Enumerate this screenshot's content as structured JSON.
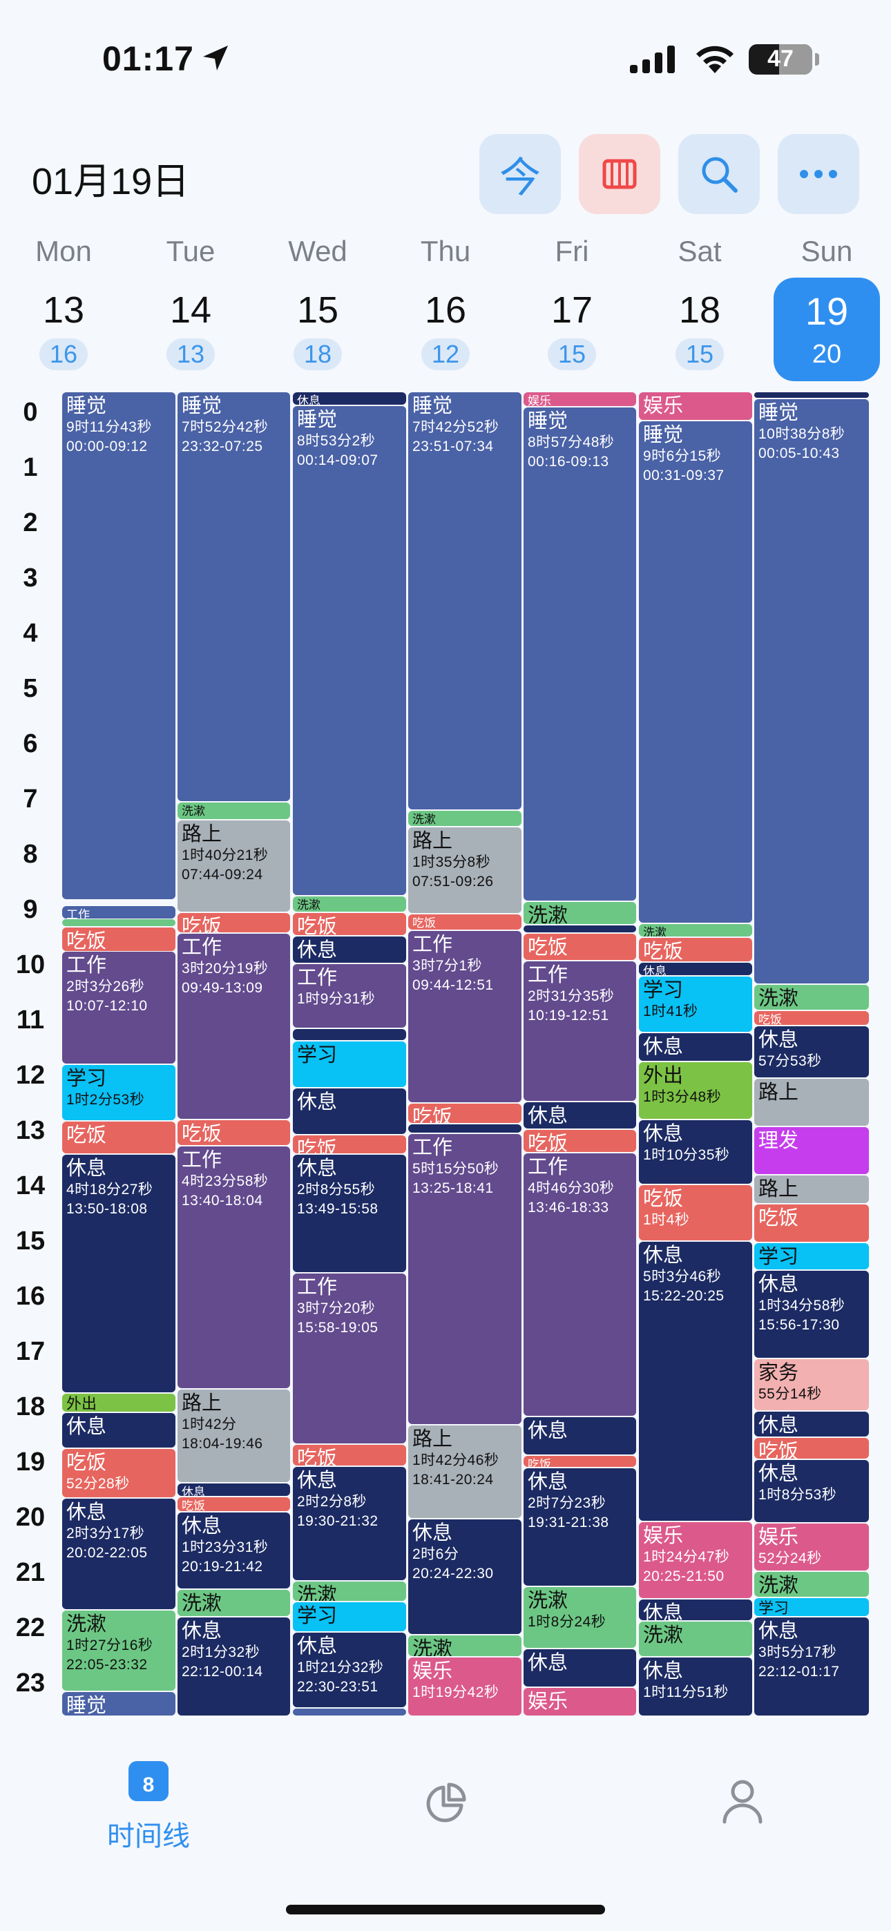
{
  "status_bar": {
    "time": "01:17",
    "battery": "47"
  },
  "header": {
    "date": "01月19日",
    "today_button": "今",
    "icons": [
      "week-view-icon",
      "search-icon",
      "more-icon"
    ]
  },
  "days": [
    {
      "name": "Mon",
      "date": "13",
      "count": "16"
    },
    {
      "name": "Tue",
      "date": "14",
      "count": "13"
    },
    {
      "name": "Wed",
      "date": "15",
      "count": "18"
    },
    {
      "name": "Thu",
      "date": "16",
      "count": "12"
    },
    {
      "name": "Fri",
      "date": "17",
      "count": "15"
    },
    {
      "name": "Sat",
      "date": "18",
      "count": "15"
    },
    {
      "name": "Sun",
      "date": "19",
      "count": "20",
      "selected": true
    }
  ],
  "hours": [
    "0",
    "1",
    "2",
    "3",
    "4",
    "5",
    "6",
    "7",
    "8",
    "9",
    "10",
    "11",
    "12",
    "13",
    "14",
    "15",
    "16",
    "17",
    "18",
    "19",
    "20",
    "21",
    "22",
    "23"
  ],
  "categories": {
    "sleep": "#4a62a6",
    "rest": "#1c2b63",
    "work": "#634b8e",
    "eat": "#e7655f",
    "wash": "#6cc784",
    "road": "#a8b0b8",
    "study": "#08c1f5",
    "play": "#dc5a8b",
    "out": "#7cc244",
    "hair": "#c53ded",
    "house": "#f2b0b0"
  },
  "events": {
    "mon": {
      "sleep1": {
        "title": "睡觉",
        "dur": "9时11分43秒",
        "range": "00:00-09:12"
      },
      "work_s": {
        "title": "工作"
      },
      "eat1": {
        "title": "吃饭"
      },
      "work1": {
        "title": "工作",
        "dur": "2时3分26秒",
        "range": "10:07-12:10"
      },
      "study1": {
        "title": "学习",
        "dur": "1时2分53秒"
      },
      "eat2": {
        "title": "吃饭"
      },
      "rest1": {
        "title": "休息",
        "dur": "4时18分27秒",
        "range": "13:50-18:08"
      },
      "out1": {
        "title": "外出"
      },
      "rest2": {
        "title": "休息"
      },
      "eat3": {
        "title": "吃饭",
        "dur": "52分28秒"
      },
      "rest3": {
        "title": "休息",
        "dur": "2时3分17秒",
        "range": "20:02-22:05"
      },
      "wash1": {
        "title": "洗漱",
        "dur": "1时27分16秒",
        "range": "22:05-23:32"
      },
      "sleep2": {
        "title": "睡觉"
      }
    },
    "tue": {
      "sleep1": {
        "title": "睡觉",
        "dur": "7时52分42秒",
        "range": "23:32-07:25"
      },
      "wash1": {
        "title": "洗漱"
      },
      "road1": {
        "title": "路上",
        "dur": "1时40分21秒",
        "range": "07:44-09:24"
      },
      "eat1": {
        "title": "吃饭"
      },
      "work1": {
        "title": "工作",
        "dur": "3时20分19秒",
        "range": "09:49-13:09"
      },
      "eat2": {
        "title": "吃饭"
      },
      "work2": {
        "title": "工作",
        "dur": "4时23分58秒",
        "range": "13:40-18:04"
      },
      "road2": {
        "title": "路上",
        "dur": "1时42分",
        "range": "18:04-19:46"
      },
      "rest_s": {
        "title": "休息"
      },
      "eat3": {
        "title": "吃饭"
      },
      "rest1": {
        "title": "休息",
        "dur": "1时23分31秒",
        "range": "20:19-21:42"
      },
      "wash2": {
        "title": "洗漱"
      },
      "rest2": {
        "title": "休息",
        "dur": "2时1分32秒",
        "range": "22:12-00:14"
      }
    },
    "wed": {
      "rest_s": {
        "title": "休息"
      },
      "sleep1": {
        "title": "睡觉",
        "dur": "8时53分2秒",
        "range": "00:14-09:07"
      },
      "wash1": {
        "title": "洗漱"
      },
      "eat1": {
        "title": "吃饭"
      },
      "rest1": {
        "title": "休息"
      },
      "work1": {
        "title": "工作",
        "dur": "1时9分31秒"
      },
      "study1": {
        "title": "学习"
      },
      "rest2": {
        "title": "休息"
      },
      "eat2": {
        "title": "吃饭"
      },
      "rest3": {
        "title": "休息",
        "dur": "2时8分55秒",
        "range": "13:49-15:58"
      },
      "work2": {
        "title": "工作",
        "dur": "3时7分20秒",
        "range": "15:58-19:05"
      },
      "eat3": {
        "title": "吃饭"
      },
      "rest4": {
        "title": "休息",
        "dur": "2时2分8秒",
        "range": "19:30-21:32"
      },
      "wash2": {
        "title": "洗漱"
      },
      "study2": {
        "title": "学习"
      },
      "rest5": {
        "title": "休息",
        "dur": "1时21分32秒",
        "range": "22:30-23:51"
      }
    },
    "thu": {
      "sleep1": {
        "title": "睡觉",
        "dur": "7时42分52秒",
        "range": "23:51-07:34"
      },
      "wash1": {
        "title": "洗漱"
      },
      "road1": {
        "title": "路上",
        "dur": "1时35分8秒",
        "range": "07:51-09:26"
      },
      "eat1": {
        "title": "吃饭"
      },
      "work1": {
        "title": "工作",
        "dur": "3时7分1秒",
        "range": "09:44-12:51"
      },
      "eat2": {
        "title": "吃饭"
      },
      "work2": {
        "title": "工作",
        "dur": "5时15分50秒",
        "range": "13:25-18:41"
      },
      "road2": {
        "title": "路上",
        "dur": "1时42分46秒",
        "range": "18:41-20:24"
      },
      "rest1": {
        "title": "休息",
        "dur": "2时6分",
        "range": "20:24-22:30"
      },
      "wash2": {
        "title": "洗漱"
      },
      "play1": {
        "title": "娱乐",
        "dur": "1时19分42秒"
      }
    },
    "fri": {
      "play_s": {
        "title": "娱乐"
      },
      "sleep1": {
        "title": "睡觉",
        "dur": "8时57分48秒",
        "range": "00:16-09:13"
      },
      "wash1": {
        "title": "洗漱"
      },
      "eat1": {
        "title": "吃饭"
      },
      "work1": {
        "title": "工作",
        "dur": "2时31分35秒",
        "range": "10:19-12:51"
      },
      "rest1": {
        "title": "休息"
      },
      "eat2": {
        "title": "吃饭"
      },
      "work2": {
        "title": "工作",
        "dur": "4时46分30秒",
        "range": "13:46-18:33"
      },
      "rest2": {
        "title": "休息"
      },
      "eat_s": {
        "title": "吃饭"
      },
      "rest3": {
        "title": "休息",
        "dur": "2时7分23秒",
        "range": "19:31-21:38"
      },
      "wash2": {
        "title": "洗漱",
        "dur": "1时8分24秒"
      },
      "rest4": {
        "title": "休息"
      },
      "play2": {
        "title": "娱乐"
      }
    },
    "sat": {
      "play1": {
        "title": "娱乐"
      },
      "sleep1": {
        "title": "睡觉",
        "dur": "9时6分15秒",
        "range": "00:31-09:37"
      },
      "wash_s": {
        "title": "洗漱"
      },
      "eat1": {
        "title": "吃饭"
      },
      "rest_s": {
        "title": "休息"
      },
      "study1": {
        "title": "学习",
        "dur": "1时41秒"
      },
      "rest1": {
        "title": "休息"
      },
      "out1": {
        "title": "外出",
        "dur": "1时3分48秒"
      },
      "rest2": {
        "title": "休息",
        "dur": "1时10分35秒"
      },
      "eat2": {
        "title": "吃饭",
        "dur": "1时4秒"
      },
      "rest3": {
        "title": "休息",
        "dur": "5时3分46秒",
        "range": "15:22-20:25"
      },
      "play2": {
        "title": "娱乐",
        "dur": "1时24分47秒",
        "range": "20:25-21:50"
      },
      "rest4": {
        "title": "休息"
      },
      "wash1": {
        "title": "洗漱"
      },
      "rest5": {
        "title": "休息",
        "dur": "1时11分51秒"
      }
    },
    "sun": {
      "sleep1": {
        "title": "睡觉",
        "dur": "10时38分8秒",
        "range": "00:05-10:43"
      },
      "wash1": {
        "title": "洗漱"
      },
      "eat_s": {
        "title": "吃饭"
      },
      "rest1": {
        "title": "休息",
        "dur": "57分53秒"
      },
      "road1": {
        "title": "路上"
      },
      "hair1": {
        "title": "理发"
      },
      "road2": {
        "title": "路上"
      },
      "eat1": {
        "title": "吃饭"
      },
      "study1": {
        "title": "学习"
      },
      "rest2": {
        "title": "休息",
        "dur": "1时34分58秒",
        "range": "15:56-17:30"
      },
      "house1": {
        "title": "家务",
        "dur": "55分14秒"
      },
      "rest3": {
        "title": "休息"
      },
      "eat2": {
        "title": "吃饭"
      },
      "rest4": {
        "title": "休息",
        "dur": "1时8分53秒"
      },
      "play1": {
        "title": "娱乐",
        "dur": "52分24秒"
      },
      "wash2": {
        "title": "洗漱"
      },
      "study2": {
        "title": "学习"
      },
      "rest5": {
        "title": "休息",
        "dur": "3时5分17秒",
        "range": "22:12-01:17"
      }
    }
  },
  "tab_bar": {
    "timeline_label": "时间线",
    "timeline_badge": "8"
  }
}
